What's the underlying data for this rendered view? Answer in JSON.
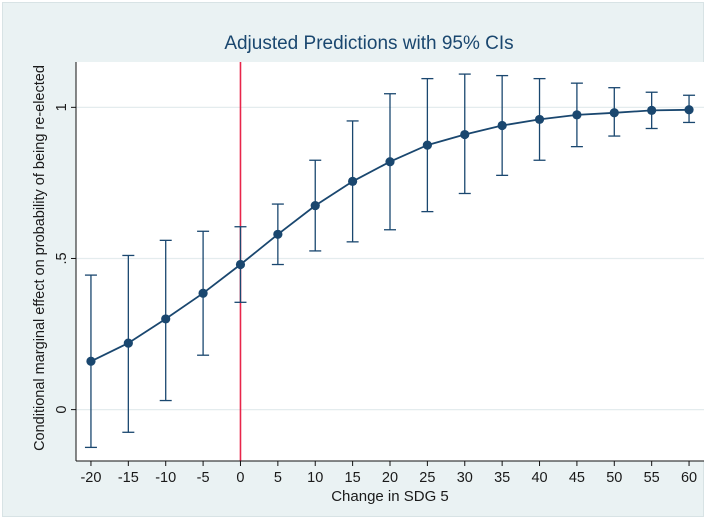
{
  "chart_data": {
    "type": "line",
    "title": "Adjusted Predictions with 95% CIs",
    "xlabel": "Change in SDG 5",
    "ylabel": "Conditional marginal effect on probability of being re-elected",
    "x": [
      -20,
      -15,
      -10,
      -5,
      0,
      5,
      10,
      15,
      20,
      25,
      30,
      35,
      40,
      45,
      50,
      55,
      60
    ],
    "x_tick_labels": [
      "-20",
      "-15",
      "-10",
      "-5",
      "0",
      "5",
      "10",
      "15",
      "20",
      "25",
      "30",
      "35",
      "40",
      "45",
      "50",
      "55",
      "60"
    ],
    "y": [
      0.16,
      0.22,
      0.3,
      0.385,
      0.48,
      0.58,
      0.675,
      0.755,
      0.82,
      0.875,
      0.91,
      0.94,
      0.96,
      0.975,
      0.982,
      0.99,
      0.992
    ],
    "ci_lower": [
      -0.125,
      -0.075,
      0.03,
      0.18,
      0.355,
      0.48,
      0.525,
      0.555,
      0.595,
      0.655,
      0.715,
      0.775,
      0.825,
      0.87,
      0.905,
      0.93,
      0.95
    ],
    "ci_upper": [
      0.445,
      0.51,
      0.56,
      0.59,
      0.605,
      0.68,
      0.825,
      0.955,
      1.045,
      1.095,
      1.11,
      1.105,
      1.095,
      1.08,
      1.065,
      1.05,
      1.04
    ],
    "y_ticks": [
      0,
      0.5,
      1
    ],
    "y_tick_labels": [
      "0",
      ".5",
      "1"
    ],
    "xlim": [
      -22,
      62
    ],
    "ylim": [
      -0.17,
      1.15
    ],
    "reference_line_x": 0,
    "grid": true,
    "colors": {
      "series": "#1a476f",
      "reference_line": "#e8254a",
      "plot_background": "#ffffff",
      "outer_background": "#eaf2f3",
      "grid": "#e4ecee"
    }
  }
}
